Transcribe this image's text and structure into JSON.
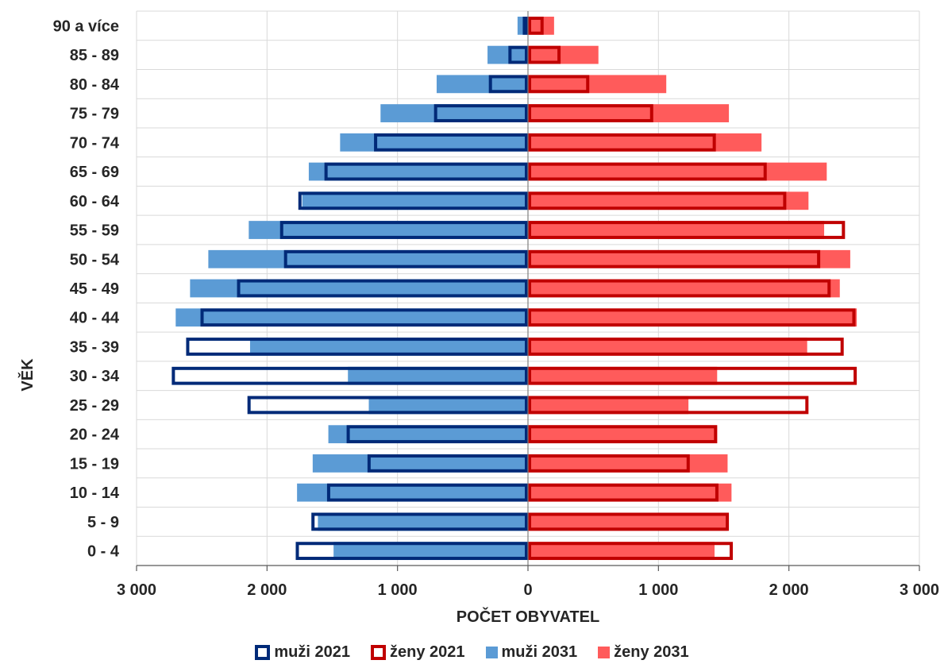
{
  "chart_data": {
    "type": "bar",
    "orientation": "horizontal",
    "subtype": "population-pyramid",
    "title": "",
    "xlabel": "POČET OBYVATEL",
    "ylabel": "VĚK",
    "xlim": [
      -3000,
      3000
    ],
    "x_tick_values": [
      -3000,
      -2000,
      -1000,
      0,
      1000,
      2000,
      3000
    ],
    "x_tick_labels": [
      "3 000",
      "2 000",
      "1 000",
      "0",
      "1 000",
      "2 000",
      "3 000"
    ],
    "grid": true,
    "legend_position": "bottom",
    "categories": [
      "0 - 4",
      "5 - 9",
      "10 - 14",
      "15 - 19",
      "20 - 24",
      "25 - 29",
      "30 - 34",
      "35 - 39",
      "40 - 44",
      "45 - 49",
      "50 - 54",
      "55 - 59",
      "60 - 64",
      "65 - 69",
      "70 - 74",
      "75 - 79",
      "80 - 84",
      "85 - 89",
      "90 a více"
    ],
    "series": [
      {
        "name": "muži 2021",
        "side": "left",
        "style": "outline",
        "color": "#002A78",
        "values": [
          1780,
          1660,
          1540,
          1230,
          1390,
          2150,
          2730,
          2620,
          2510,
          2230,
          1870,
          1900,
          1760,
          1560,
          1180,
          720,
          300,
          150,
          40
        ]
      },
      {
        "name": "ženy 2021",
        "side": "right",
        "style": "outline",
        "color": "#C00000",
        "values": [
          1570,
          1540,
          1460,
          1240,
          1450,
          2150,
          2520,
          2420,
          2510,
          2320,
          2240,
          2430,
          1980,
          1830,
          1440,
          960,
          470,
          250,
          120
        ]
      },
      {
        "name": "muži 2031",
        "side": "left",
        "style": "fill",
        "color": "#5B9BD5",
        "values": [
          1490,
          1610,
          1770,
          1650,
          1530,
          1220,
          1380,
          2130,
          2700,
          2590,
          2450,
          2140,
          1730,
          1680,
          1440,
          1130,
          700,
          310,
          80
        ]
      },
      {
        "name": "ženy 2031",
        "side": "right",
        "style": "fill",
        "color": "#FF5B5B",
        "values": [
          1430,
          1530,
          1560,
          1530,
          1450,
          1230,
          1450,
          2140,
          2520,
          2390,
          2470,
          2270,
          2150,
          2290,
          1790,
          1540,
          1060,
          540,
          200
        ]
      }
    ]
  }
}
